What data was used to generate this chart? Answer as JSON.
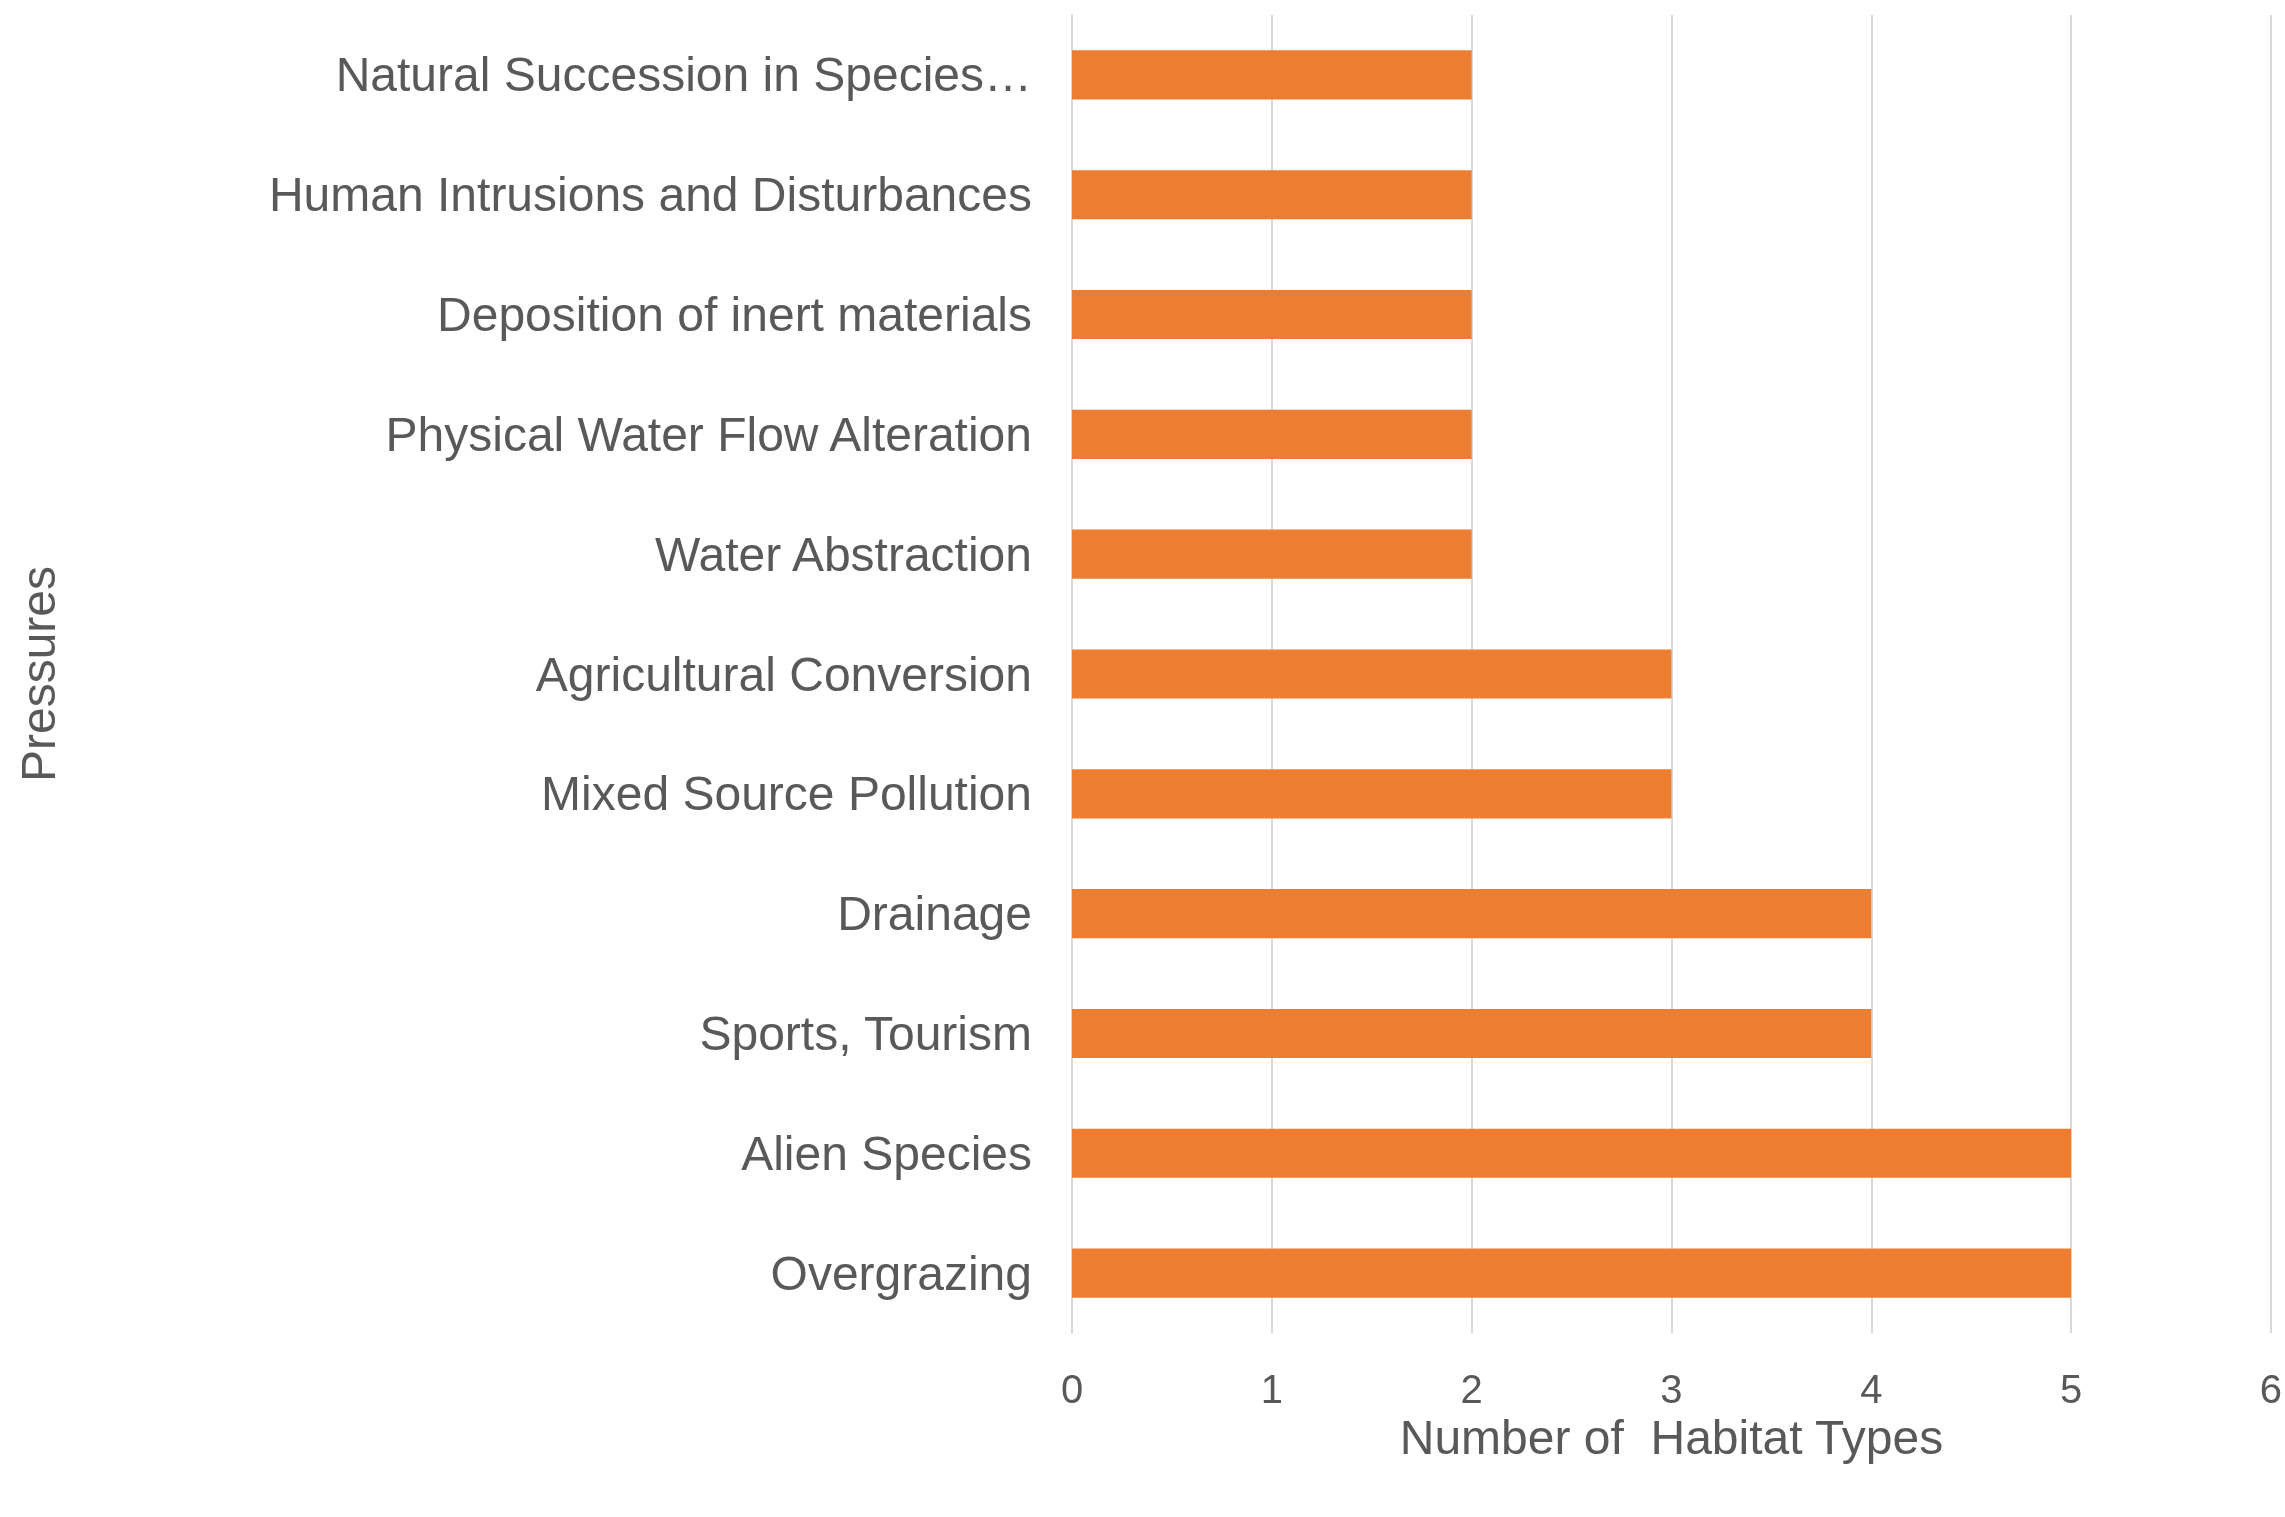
{
  "chart_data": {
    "type": "bar",
    "orientation": "horizontal",
    "categories": [
      "Natural Succession in Species…",
      "Human Intrusions and Disturbances",
      "Deposition of inert materials",
      "Physical Water Flow Alteration",
      "Water Abstraction",
      "Agricultural Conversion",
      "Mixed Source Pollution",
      "Drainage",
      "Sports, Tourism",
      "Alien Species",
      "Overgrazing"
    ],
    "values": [
      2,
      2,
      2,
      2,
      2,
      3,
      3,
      4,
      4,
      5,
      5
    ],
    "color": "#ed7d31",
    "xlabel": "Number of  Habitat Types",
    "ylabel": "Pressures",
    "xlim": [
      0,
      6
    ],
    "xticks": [
      0,
      1,
      2,
      3,
      4,
      5,
      6
    ],
    "grid": "x"
  }
}
